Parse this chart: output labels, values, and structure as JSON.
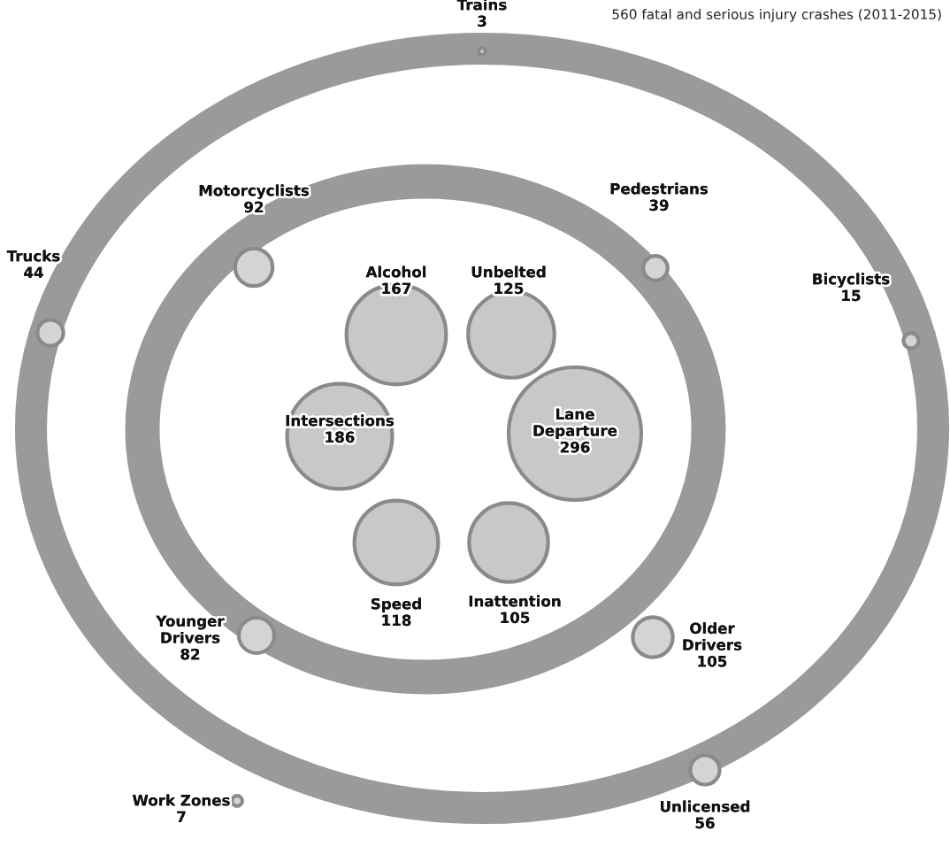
{
  "chart_data": {
    "type": "other",
    "title": "560 fatal and serious injury crashes (2011-2015)",
    "categories": [
      "Alcohol",
      "Unbelted",
      "Intersections",
      "Lane Departure",
      "Speed",
      "Inattention",
      "Motorcyclists",
      "Pedestrians",
      "Younger Drivers",
      "Older Drivers",
      "Trains",
      "Trucks",
      "Bicyclists",
      "Work Zones",
      "Unlicensed"
    ],
    "series": [
      {
        "color": "#c8c8c8",
        "values": [
          167,
          125,
          186,
          296,
          118,
          105,
          null,
          null,
          null,
          null,
          null,
          null,
          null,
          null,
          null
        ]
      },
      {
        "color": "#d4d4d4",
        "values": [
          null,
          null,
          null,
          null,
          null,
          null,
          92,
          39,
          82,
          105,
          null,
          null,
          null,
          null,
          null
        ]
      },
      {
        "color": "#d4d4d4",
        "values": [
          null,
          null,
          null,
          null,
          null,
          null,
          null,
          null,
          null,
          null,
          3,
          44,
          15,
          7,
          56
        ]
      }
    ],
    "data_labels": true
  }
}
